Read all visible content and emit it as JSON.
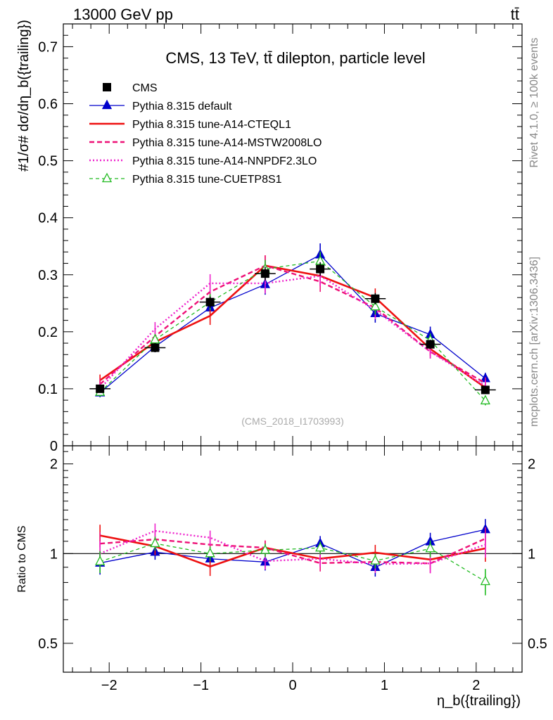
{
  "header": {
    "left": "13000 GeV pp",
    "right": "tt̄"
  },
  "side_labels": {
    "rivet": "Rivet 4.1.0, ≥ 100k events",
    "mcplots": "mcplots.cern.ch [arXiv:1306.3436]"
  },
  "chart_data": {
    "type": "line",
    "title": "CMS, 13 TeV, tt̄ dilepton, particle level",
    "watermark": "(CMS_2018_I1703993)",
    "xlabel": "η_b({trailing})",
    "ylabel": "#1/σ# dσ/dη_b({trailing})",
    "ratio_ylabel": "Ratio to CMS",
    "xlim": [
      -2.5,
      2.5
    ],
    "ylim": [
      0,
      0.74
    ],
    "ratio_ylim": [
      0.4,
      2.3
    ],
    "x_ticks": [
      -2,
      -1,
      0,
      1,
      2
    ],
    "x_tick_labels": [
      "−2",
      "−1",
      "0",
      "1",
      "2"
    ],
    "y_ticks": [
      0,
      0.1,
      0.2,
      0.3,
      0.4,
      0.5,
      0.6,
      0.7
    ],
    "y_tick_labels": [
      "0",
      "0.1",
      "0.2",
      "0.3",
      "0.4",
      "0.5",
      "0.6",
      "0.7"
    ],
    "ratio_ticks": [
      0.5,
      1,
      2
    ],
    "ratio_tick_labels": [
      "0.5",
      "1",
      "2"
    ],
    "x": [
      -2.1,
      -1.5,
      -0.9,
      -0.3,
      0.3,
      0.9,
      1.5,
      2.1
    ],
    "bin_edges": [
      -2.4,
      -1.8,
      -1.2,
      -0.6,
      0,
      0.6,
      1.2,
      1.8,
      2.4
    ],
    "data": {
      "name": "CMS",
      "values": [
        0.1,
        0.172,
        0.252,
        0.302,
        0.31,
        0.258,
        0.178,
        0.098
      ],
      "errors": [
        0.006,
        0.008,
        0.01,
        0.012,
        0.012,
        0.01,
        0.008,
        0.006
      ]
    },
    "series": [
      {
        "name": "Pythia 8.315 default",
        "color": "#0000cc",
        "values": [
          0.093,
          0.174,
          0.242,
          0.283,
          0.335,
          0.232,
          0.195,
          0.118
        ],
        "errors": [
          0.008,
          0.01,
          0.016,
          0.018,
          0.02,
          0.016,
          0.014,
          0.01
        ]
      },
      {
        "name": "Pythia 8.315 tune-A14-CTEQL1",
        "color": "#ee1111",
        "values": [
          0.115,
          0.182,
          0.228,
          0.316,
          0.298,
          0.26,
          0.17,
          0.102
        ],
        "errors": [
          0.01,
          0.012,
          0.016,
          0.018,
          0.018,
          0.016,
          0.012,
          0.01
        ]
      },
      {
        "name": "Pythia 8.315 tune-A14-MSTW2008LO",
        "color": "#ee1177",
        "values": [
          0.108,
          0.192,
          0.27,
          0.316,
          0.288,
          0.242,
          0.165,
          0.11
        ],
        "errors": [
          0.01,
          0.012,
          0.016,
          0.018,
          0.018,
          0.016,
          0.012,
          0.01
        ]
      },
      {
        "name": "Pythia 8.315 tune-A14-NNPDF2.3LO",
        "color": "#ee22cc",
        "values": [
          0.1,
          0.205,
          0.285,
          0.285,
          0.298,
          0.238,
          0.165,
          0.105
        ],
        "errors": [
          0.01,
          0.012,
          0.016,
          0.018,
          0.018,
          0.016,
          0.012,
          0.01
        ]
      },
      {
        "name": "Pythia 8.315 tune-CUETP8S1",
        "color": "#22bb22",
        "values": [
          0.094,
          0.186,
          0.252,
          0.31,
          0.324,
          0.244,
          0.185,
          0.079
        ],
        "errors": [
          0.008,
          0.01,
          0.014,
          0.016,
          0.016,
          0.014,
          0.012,
          0.008
        ]
      }
    ]
  }
}
